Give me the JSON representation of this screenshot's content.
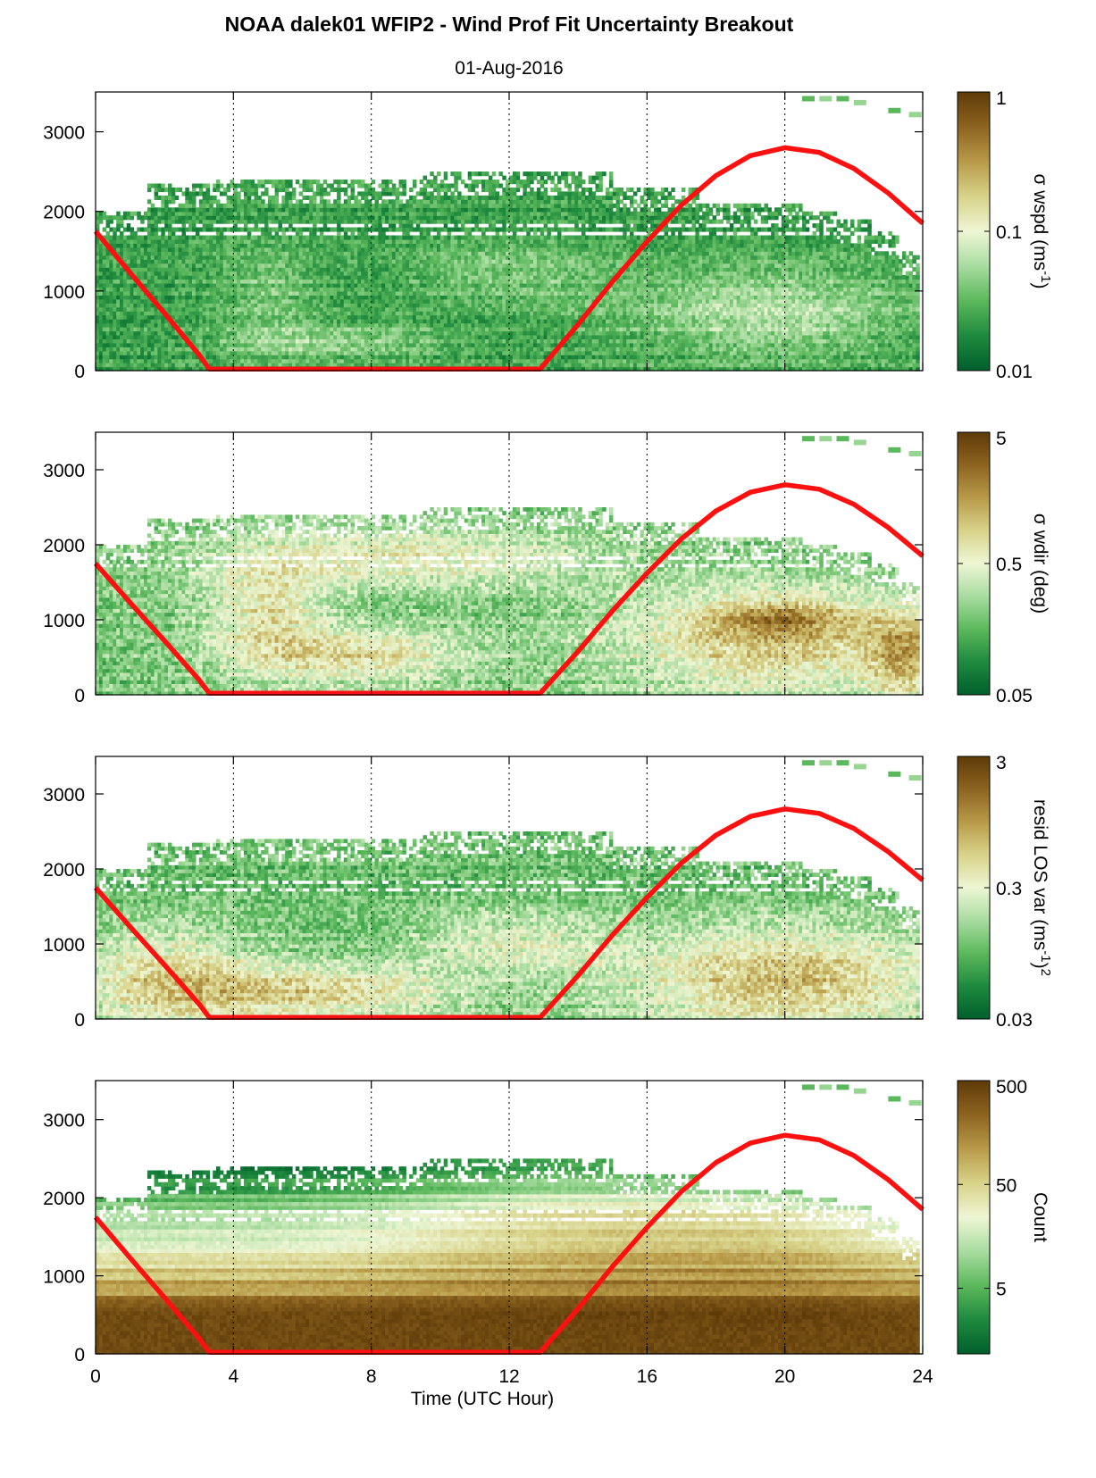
{
  "figure": {
    "title": "NOAA dalek01 WFIP2 - Wind Prof Fit Uncertainty Breakout",
    "subtitle": "01-Aug-2016",
    "xlabel": "Time (UTC Hour)"
  },
  "colors": {
    "sun_curve": "#ff1010",
    "colormap": [
      "#005f2c",
      "#1e8a3e",
      "#5cb85c",
      "#a8dca0",
      "#eef6d4",
      "#d8d38a",
      "#b89a48",
      "#8c6420",
      "#5e3a08"
    ]
  },
  "chart_data": [
    {
      "type": "heatmap",
      "id": "wspd",
      "xlim": [
        0,
        24
      ],
      "ylim": [
        0,
        3500
      ],
      "xticks": [
        "0",
        "4",
        "8",
        "12",
        "16",
        "20",
        "24"
      ],
      "yticks": [
        "0",
        "1000",
        "2000",
        "3000"
      ],
      "colorbar_ticks": [
        "0.01",
        "0.1",
        "1"
      ],
      "colorbar_label": "σ wspd (ms-1)",
      "colorbar_label_parts": {
        "main": "σ wspd (ms",
        "sup": "-1",
        "end": ")"
      },
      "scale": "log",
      "grid": "vertical dotted at 4,8,12,16,20",
      "profile": "low"
    },
    {
      "type": "heatmap",
      "id": "wdir",
      "xlim": [
        0,
        24
      ],
      "ylim": [
        0,
        3500
      ],
      "xticks": [
        "0",
        "4",
        "8",
        "12",
        "16",
        "20",
        "24"
      ],
      "yticks": [
        "0",
        "1000",
        "2000",
        "3000"
      ],
      "colorbar_ticks": [
        "0.05",
        "0.5",
        "5"
      ],
      "colorbar_label": "σ wdir (deg)",
      "colorbar_label_parts": {
        "main": "σ wdir (deg)",
        "sup": "",
        "end": ""
      },
      "scale": "log",
      "grid": "vertical dotted at 4,8,12,16,20",
      "profile": "mid"
    },
    {
      "type": "heatmap",
      "id": "resid",
      "xlim": [
        0,
        24
      ],
      "ylim": [
        0,
        3500
      ],
      "xticks": [
        "0",
        "4",
        "8",
        "12",
        "16",
        "20",
        "24"
      ],
      "yticks": [
        "0",
        "1000",
        "2000",
        "3000"
      ],
      "colorbar_ticks": [
        "0.03",
        "0.3",
        "3"
      ],
      "colorbar_label": "resid LOS var (ms-1)2",
      "colorbar_label_parts": {
        "main": "resid LOS var (ms",
        "sup": "-1",
        "end": ")",
        "sup2": "2"
      },
      "scale": "log",
      "grid": "vertical dotted at 4,8,12,16,20",
      "profile": "resid"
    },
    {
      "type": "heatmap",
      "id": "count",
      "xlim": [
        0,
        24
      ],
      "ylim": [
        0,
        3500
      ],
      "xticks": [
        "0",
        "4",
        "8",
        "12",
        "16",
        "20",
        "24"
      ],
      "yticks": [
        "0",
        "1000",
        "2000",
        "3000"
      ],
      "colorbar_ticks": [
        "5",
        "50",
        "500"
      ],
      "colorbar_label": "Count",
      "colorbar_label_parts": {
        "main": "Count",
        "sup": "",
        "end": ""
      },
      "scale": "log",
      "grid": "vertical dotted at 4,8,12,16,20",
      "profile": "count"
    }
  ],
  "sun_curve": {
    "x": [
      0,
      1,
      2,
      3,
      3.3,
      12.9,
      14,
      15,
      16,
      17,
      18,
      19,
      20,
      21,
      22,
      23,
      24
    ],
    "y": [
      1750,
      1230,
      720,
      200,
      20,
      20,
      580,
      1120,
      1620,
      2080,
      2450,
      2700,
      2800,
      2740,
      2540,
      2230,
      1850
    ]
  }
}
